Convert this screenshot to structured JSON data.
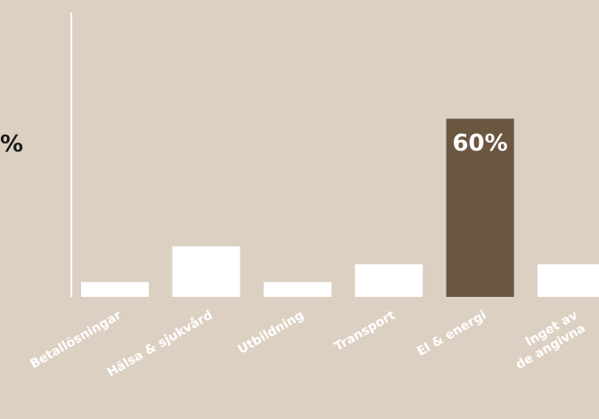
{
  "chart_data": {
    "type": "bar",
    "categories": [
      [
        "Betallösningar"
      ],
      [
        "Hälsa & sjukvård"
      ],
      [
        "Utbildning"
      ],
      [
        "Transport"
      ],
      [
        "El & energi"
      ],
      [
        "Inget av",
        "de angivna"
      ]
    ],
    "values": [
      5,
      17,
      5,
      11,
      60,
      11
    ],
    "highlight_index": 4,
    "data_labels": [
      "",
      "",
      "",
      "",
      "60%",
      ""
    ],
    "side_label": "%",
    "ylim": [
      0,
      100
    ],
    "colors": {
      "bar": "#ffffff",
      "highlight": "#6b5640",
      "axis": "#ffffff",
      "background": "#dcd0c2"
    }
  }
}
